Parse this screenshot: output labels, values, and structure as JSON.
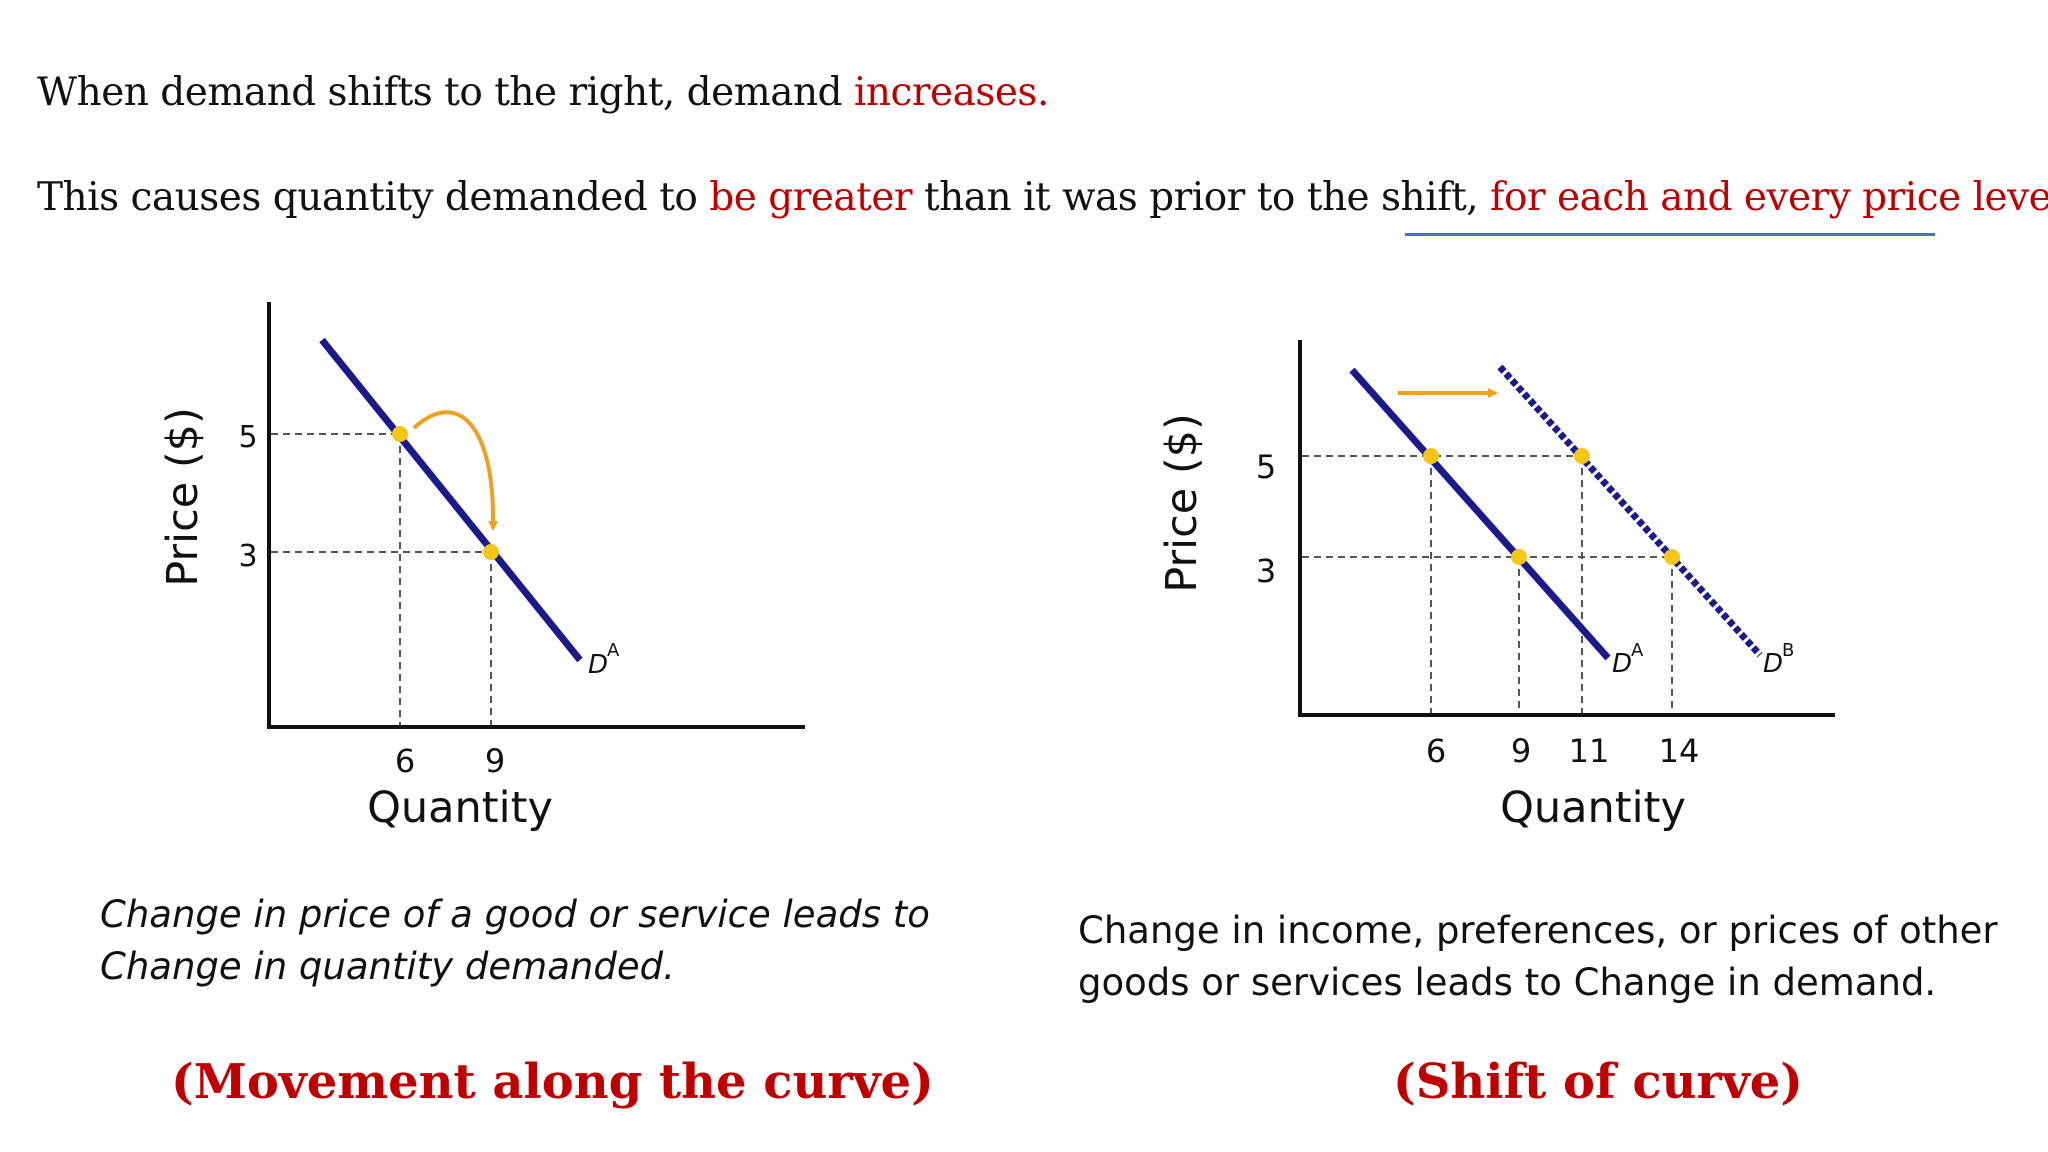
{
  "heading": {
    "line1": {
      "a": "When demand shifts to the right, demand ",
      "b": "increases."
    },
    "line2": {
      "a": "This causes quantity demanded to ",
      "b": "be greater",
      "c": " than it was prior to the shift, ",
      "d": "for each and every price level."
    }
  },
  "colors": {
    "accent_red": "#c00000",
    "curve": "#1a1a8c",
    "point": "#f5c518",
    "arrow": "#f0a020",
    "underline": "#4472c4"
  },
  "left_diagram": {
    "ylabel": "Price ($)",
    "xlabel": "Quantity",
    "y_ticks": [
      "5",
      "3"
    ],
    "x_ticks": [
      "6",
      "9"
    ],
    "curve_label": "D",
    "curve_sup": "A",
    "caption_line1": "Change in price of a good or service leads to",
    "caption_line2": "Change in quantity demanded.",
    "title": "(Movement along the curve)"
  },
  "right_diagram": {
    "ylabel": "Price ($)",
    "xlabel": "Quantity",
    "y_ticks": [
      "5",
      "3"
    ],
    "x_ticks": [
      "6",
      "9",
      "11",
      "14"
    ],
    "curve_a_label": "D",
    "curve_a_sup": "A",
    "curve_b_label": "D",
    "curve_b_sup": "B",
    "caption_line1": "Change in income, preferences, or prices of other",
    "caption_line2": "goods or services leads to Change in demand.",
    "title": "(Shift of curve)"
  }
}
